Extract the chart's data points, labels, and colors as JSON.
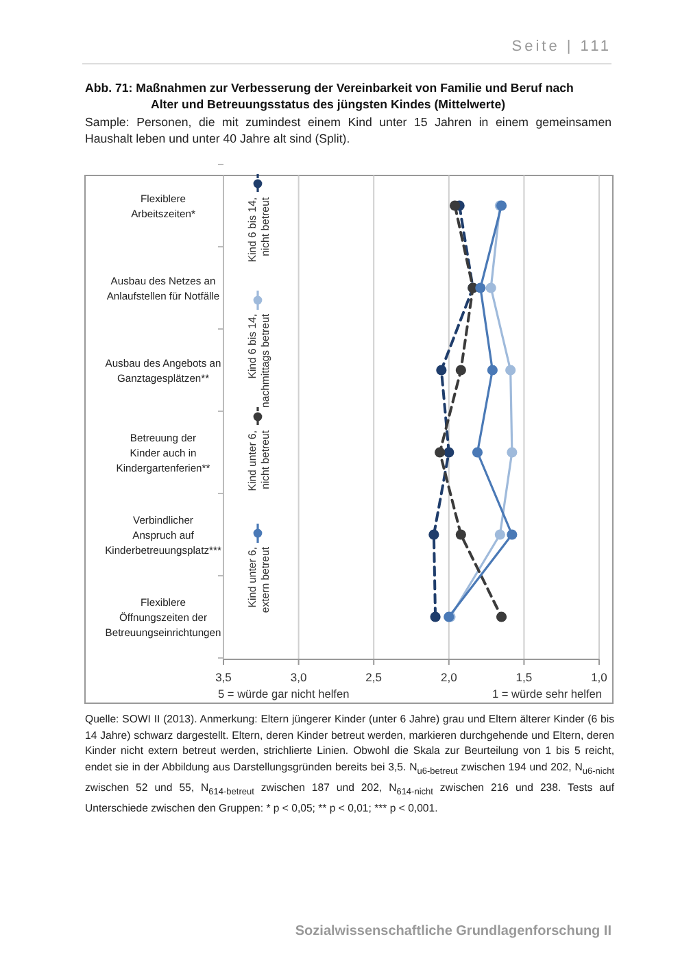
{
  "chart_data": {
    "type": "line",
    "orientation": "horizontal",
    "title": "Abb. 71: Maßnahmen zur Verbesserung der Vereinbarkeit von Familie und Beruf nach Alter und Betreuungsstatus des jüngsten Kindes (Mittelwerte)",
    "subtitle": "Sample: Personen, die mit zumindest einem Kind unter 15 Jahren in einem gemeinsamen Haushalt leben und unter 40 Jahre alt sind (Split).",
    "categories": [
      "Flexiblere\nArbeitszeiten*",
      "Ausbau des Netzes an\nAnlaufstellen für Notfälle",
      "Ausbau des Angebots an\nGanztagesplätzen**",
      "Betreuung der\nKinder auch in\nKindergartenferien**",
      "Verbindlicher\nAnspruch auf\nKinderbetreuungsplatz***",
      "Flexiblere\nÖffnungszeiten der\nBetreuungseinrichtungen"
    ],
    "series": [
      {
        "name": "Kind 6 bis 14, nicht betreut",
        "color": "#1f3d6b",
        "line_style": "dashed",
        "values": [
          1.93,
          1.84,
          2.05,
          2.0,
          2.1,
          2.09
        ]
      },
      {
        "name": "Kind 6 bis 14, nachmittags betreut",
        "color": "#9fbadb",
        "line_style": "solid",
        "values": [
          1.66,
          1.72,
          1.59,
          1.58,
          1.66,
          1.99
        ]
      },
      {
        "name": "Kind unter 6, nicht betreut",
        "color": "#3b3b3b",
        "line_style": "dashed",
        "values": [
          1.96,
          1.84,
          1.92,
          2.06,
          1.92,
          1.65
        ]
      },
      {
        "name": "Kind unter 6, extern betreut",
        "color": "#4a79b6",
        "line_style": "solid",
        "values": [
          1.65,
          1.79,
          1.71,
          1.81,
          1.58,
          2.0
        ]
      }
    ],
    "xlim": [
      3.5,
      1.0
    ],
    "xticks": [
      {
        "value": 3.5,
        "label": "3,5"
      },
      {
        "value": 3.0,
        "label": "3,0"
      },
      {
        "value": 2.5,
        "label": "2,5"
      },
      {
        "value": 2.0,
        "label": "2,0"
      },
      {
        "value": 1.5,
        "label": "1,5"
      },
      {
        "value": 1.0,
        "label": "1,0"
      }
    ],
    "grid": "x",
    "marker": "circle",
    "legend": "left",
    "annotations": [
      "5 = würde gar nicht helfen",
      "1 = würde sehr helfen",
      "Quelle: SOWI II (2013). Anmerkung: Eltern jüngerer Kinder (unter 6 Jahre) grau und Eltern älterer Kinder (6 bis 14 Jahre) schwarz dargestellt. Eltern, deren Kinder betreut werden, markieren durchgehende und Eltern, deren Kinder nicht extern betreut werden, strichlierte Linien. Obwohl die Skala zur Beurteilung von 1 bis 5 reicht, endet sie in der Abbildung aus Darstellungsgründen bereits bei 3,5. N$_{u6-betreut}$ zwischen 194 und 202, N$_{u6-nicht}$ zwischen 52 und 55, N$_{614-betreut}$ zwischen 187 und 202, N$_{614-nicht}$ zwischen 216 und 238. Tests auf Unterschiede zwischen den Gruppen: * p < 0,05; ** p < 0,01; *** p < 0,001.",
      "Seite | 111",
      "Sozialwissenschaftliche Grundlagenforschung II"
    ]
  }
}
